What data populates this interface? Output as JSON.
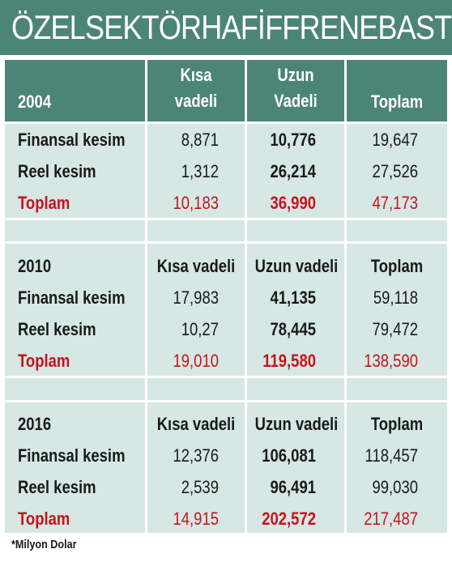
{
  "title": "ÖZELSEKTÖRHAFİFFRENEBASTI",
  "colors": {
    "banner": "#4c8479",
    "panel": "#d6e7e4",
    "total": "#c4141d"
  },
  "blocks": [
    {
      "year": "2004",
      "headers": {
        "short_line1": "Kısa",
        "short_line2": "vadeli",
        "long_line1": "Uzun",
        "long_line2": "Vadeli",
        "total": "Toplam"
      },
      "rows": [
        {
          "label": "Finansal kesim",
          "short": "8,871",
          "long": "10,776",
          "total": "19,647"
        },
        {
          "label": "Reel kesim",
          "short": "1,312",
          "long": "26,214",
          "total": "27,526"
        },
        {
          "label": "Toplam",
          "short": "10,183",
          "long": "36,990",
          "total": "47,173"
        }
      ]
    },
    {
      "year": "2010",
      "headers": {
        "short": "Kısa vadeli",
        "long": "Uzun vadeli",
        "total": "Toplam"
      },
      "rows": [
        {
          "label": "Finansal kesim",
          "short": "17,983",
          "long": "41,135",
          "total": "59,118"
        },
        {
          "label": "Reel kesim",
          "short": "10,27",
          "long": "78,445",
          "total": "79,472"
        },
        {
          "label": "Toplam",
          "short": "19,010",
          "long": "119,580",
          "total": "138,590"
        }
      ]
    },
    {
      "year": "2016",
      "headers": {
        "short": "Kısa vadeli",
        "long": "Uzun vadeli",
        "total": "Toplam"
      },
      "rows": [
        {
          "label": "Finansal kesim",
          "short": "12,376",
          "long": "106,081",
          "total": "118,457"
        },
        {
          "label": "Reel kesim",
          "short": "2,539",
          "long": "96,491",
          "total": "99,030"
        },
        {
          "label": "Toplam",
          "short": "14,915",
          "long": "202,572",
          "total": "217,487"
        }
      ]
    }
  ],
  "footnote": "*Milyon Dolar"
}
